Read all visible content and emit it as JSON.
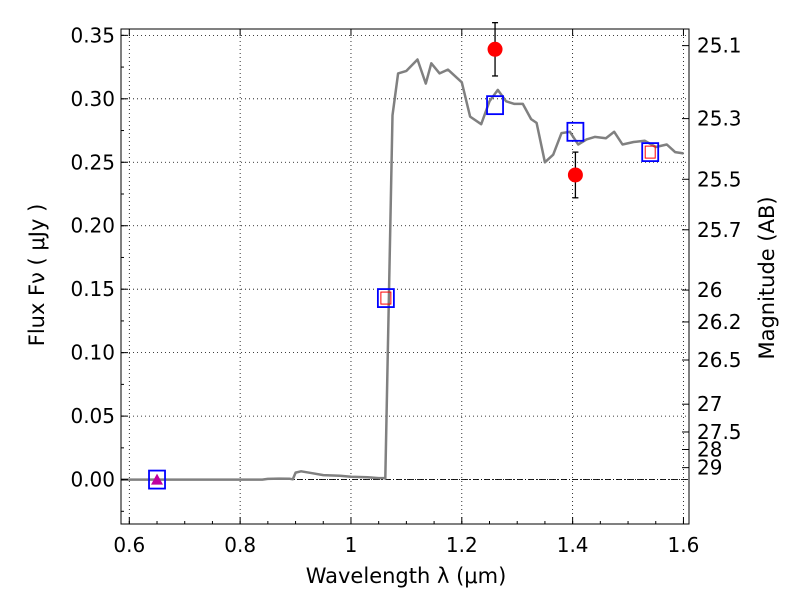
{
  "chart_data": {
    "type": "line",
    "xlabel": "Wavelength  λ (μm)",
    "ylabel": "Flux  Fν  ( μJy )",
    "y2label": "Magnitude (AB)",
    "xlim": [
      0.585,
      1.61
    ],
    "ylim": [
      -0.035,
      0.355
    ],
    "grid": true,
    "x_ticks": [
      0.6,
      0.8,
      1.0,
      1.2,
      1.4,
      1.6
    ],
    "x_tick_labels": [
      "0.6",
      "0.8",
      "1",
      "1.2",
      "1.4",
      "1.6"
    ],
    "y_ticks": [
      0.0,
      0.05,
      0.1,
      0.15,
      0.2,
      0.25,
      0.3,
      0.35
    ],
    "y_tick_labels": [
      "0.00",
      "0.05",
      "0.10",
      "0.15",
      "0.20",
      "0.25",
      "0.30",
      "0.35"
    ],
    "mag_ticks": [
      {
        "label": "25.1",
        "flux": 0.3419
      },
      {
        "label": "25.3",
        "flux": 0.2844
      },
      {
        "label": "25.5",
        "flux": 0.2366
      },
      {
        "label": "25.7",
        "flux": 0.1968
      },
      {
        "label": "26",
        "flux": 0.1493
      },
      {
        "label": "26.2",
        "flux": 0.1242
      },
      {
        "label": "26.5",
        "flux": 0.0942
      },
      {
        "label": "27",
        "flux": 0.0594
      },
      {
        "label": "27.5",
        "flux": 0.0375
      },
      {
        "label": "28",
        "flux": 0.0237
      },
      {
        "label": "29",
        "flux": 0.0094
      }
    ],
    "series": [
      {
        "kind": "model_spectrum",
        "color": "#808080",
        "x": [
          0.585,
          0.65,
          0.7,
          0.75,
          0.8,
          0.84,
          0.85,
          0.87,
          0.89,
          0.895,
          0.9,
          0.91,
          0.93,
          0.95,
          0.98,
          1.0,
          1.03,
          1.05,
          1.06,
          1.062,
          1.075,
          1.085,
          1.1,
          1.12,
          1.135,
          1.145,
          1.16,
          1.175,
          1.2,
          1.215,
          1.235,
          1.25,
          1.265,
          1.28,
          1.295,
          1.31,
          1.325,
          1.335,
          1.35,
          1.365,
          1.38,
          1.395,
          1.41,
          1.425,
          1.44,
          1.46,
          1.475,
          1.49,
          1.51,
          1.53,
          1.55,
          1.57,
          1.585,
          1.6
        ],
        "y": [
          0.0,
          0.0,
          0.0,
          0.0,
          0.0,
          0.0,
          0.0005,
          0.0008,
          0.0006,
          0.0002,
          0.0055,
          0.0065,
          0.005,
          0.0035,
          0.003,
          0.0022,
          0.0018,
          0.0012,
          0.0012,
          0.0008,
          0.287,
          0.32,
          0.322,
          0.331,
          0.312,
          0.328,
          0.32,
          0.323,
          0.313,
          0.286,
          0.28,
          0.298,
          0.307,
          0.298,
          0.296,
          0.296,
          0.284,
          0.281,
          0.25,
          0.256,
          0.273,
          0.274,
          0.264,
          0.268,
          0.27,
          0.269,
          0.274,
          0.264,
          0.266,
          0.267,
          0.262,
          0.264,
          0.258,
          0.257
        ]
      },
      {
        "kind": "model_band_fluxes",
        "marker": "open-square",
        "color": "#0000ff",
        "x": [
          0.65,
          1.063,
          1.26,
          1.405,
          1.54
        ],
        "y": [
          0.0,
          0.143,
          0.295,
          0.274,
          0.258
        ]
      },
      {
        "kind": "model_band_fluxes_small",
        "marker": "open-square",
        "color": "#ff0000",
        "x": [
          1.063,
          1.54
        ],
        "y": [
          0.143,
          0.258
        ]
      },
      {
        "kind": "observed_detections",
        "marker": "filled-circle",
        "color": "#ff0000",
        "x": [
          1.26,
          1.405
        ],
        "y": [
          0.339,
          0.24
        ],
        "err": [
          0.021,
          0.018
        ]
      },
      {
        "kind": "observed_nondetection",
        "marker": "filled-triangle",
        "color": "#c000a0",
        "x": [
          0.65
        ],
        "y": [
          0.0
        ],
        "err": [
          0.002
        ]
      }
    ]
  }
}
